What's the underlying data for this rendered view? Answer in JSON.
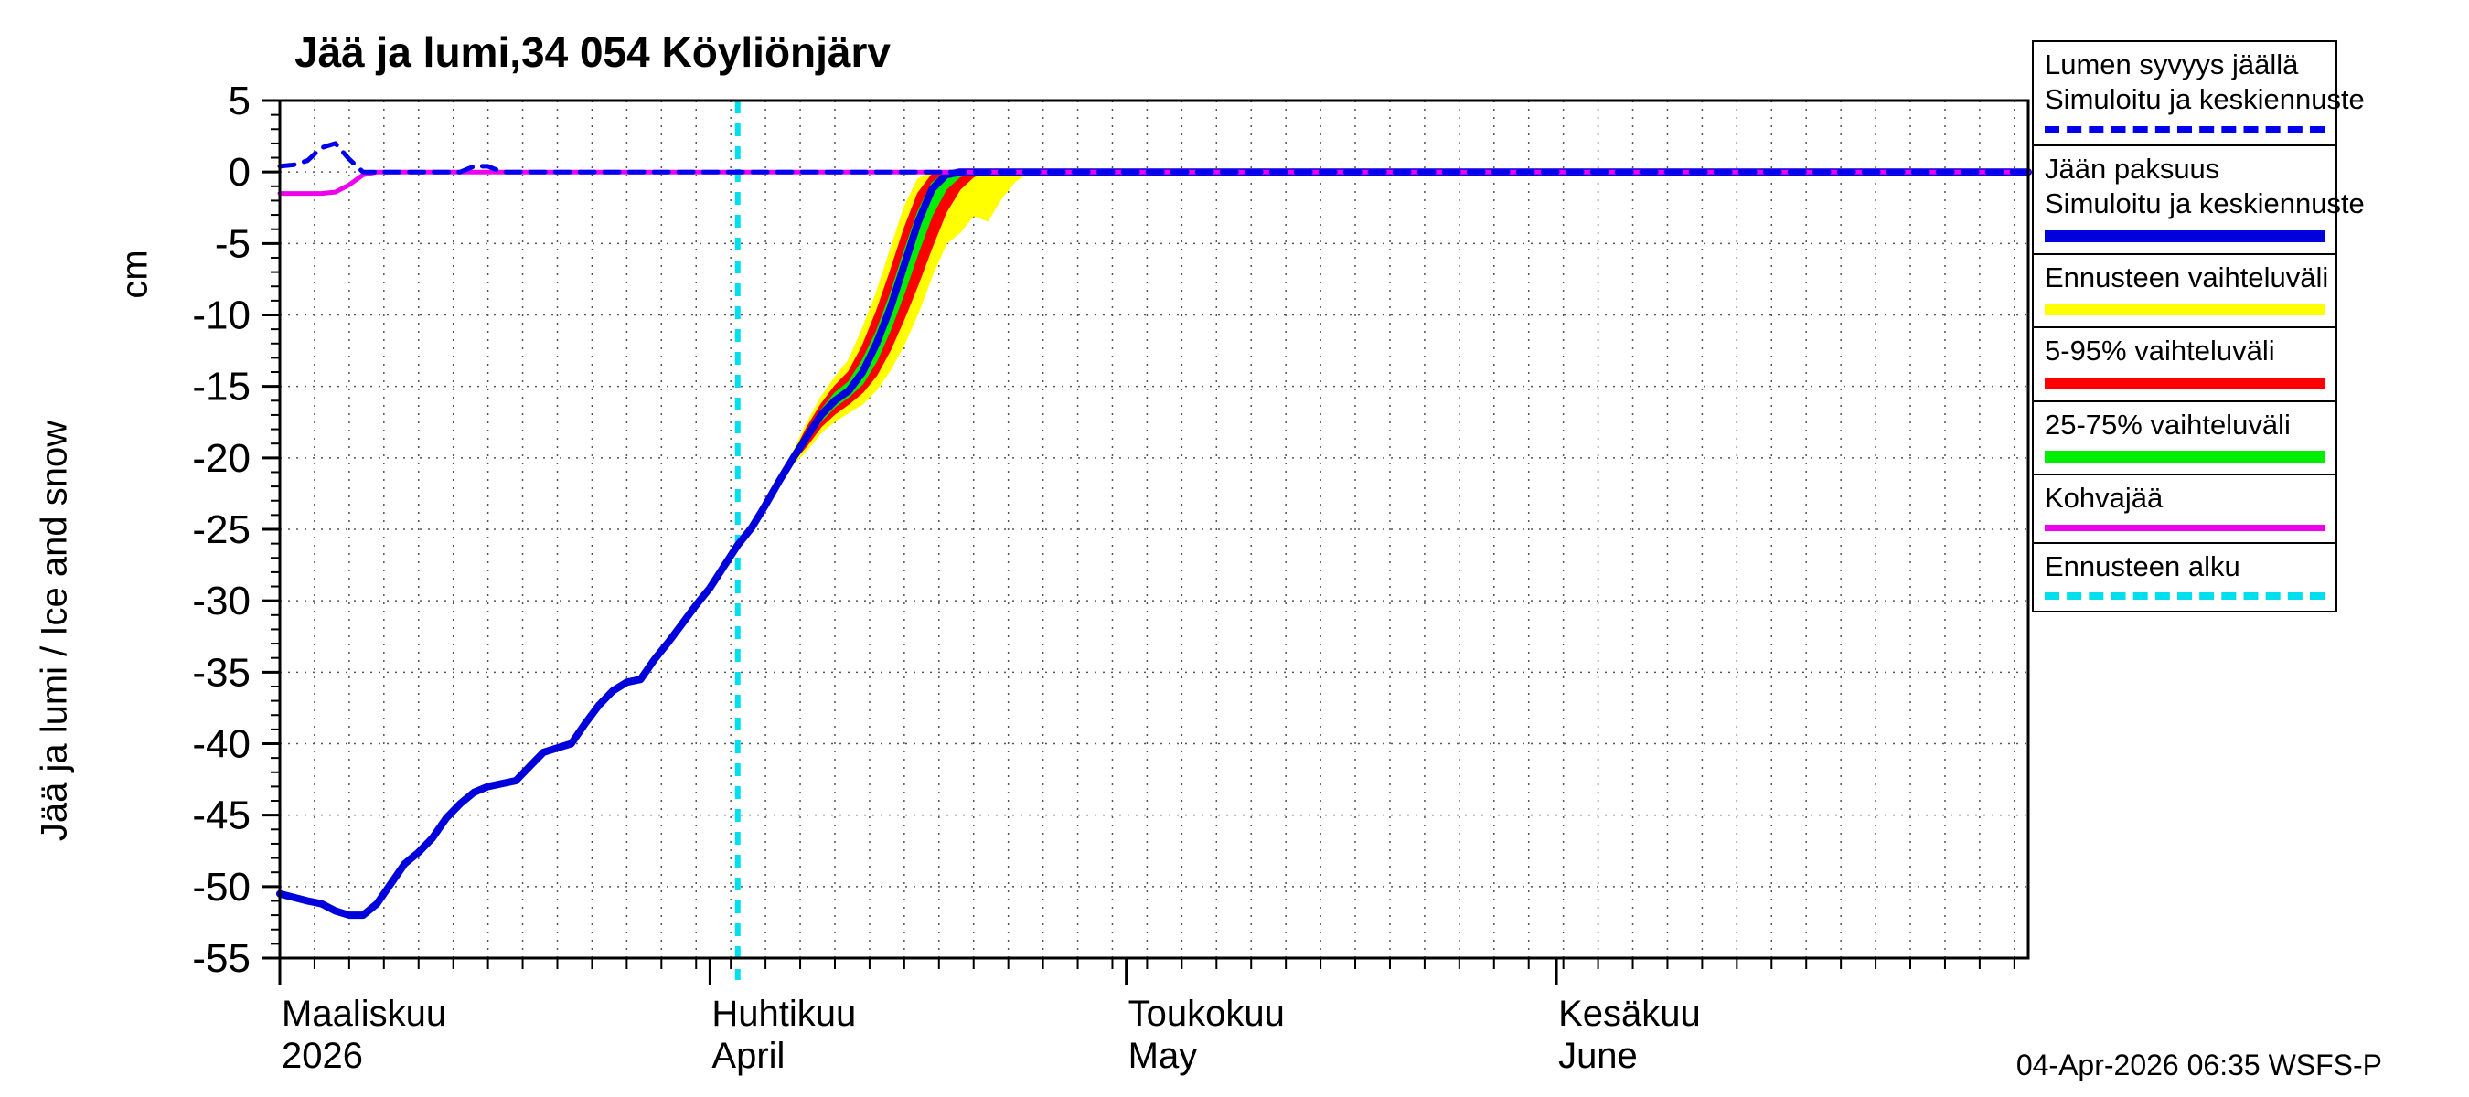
{
  "title": "Jää ja lumi,34 054 Köyliönjärv",
  "ylabel": "Jää ja lumi / Ice and snow",
  "ylabel_unit": "cm",
  "footer": {
    "timestamp": "04-Apr-2026 06:35  WSFS-P"
  },
  "legend": {
    "items": [
      {
        "line1": "Lumen syvyys jäällä",
        "line2": "Simuloitu ja keskiennuste",
        "color": "#0000ee",
        "style": "dashed",
        "thick": false
      },
      {
        "line1": "Jään paksuus",
        "line2": "Simuloitu ja keskiennuste",
        "color": "#0000dd",
        "style": "solid",
        "thick": true
      },
      {
        "line1": "Ennusteen vaihteluväli",
        "color": "#ffff00",
        "style": "solid",
        "thick": true
      },
      {
        "line1": "5-95% vaihteluväli",
        "color": "#ff0000",
        "style": "solid",
        "thick": true
      },
      {
        "line1": "25-75% vaihteluväli",
        "color": "#00ee00",
        "style": "solid",
        "thick": true
      },
      {
        "line1": "Kohvajää",
        "color": "#ee00ee",
        "style": "solid",
        "thick": false
      },
      {
        "line1": "Ennusteen alku",
        "color": "#00dfee",
        "style": "dashed",
        "thick": false
      }
    ]
  },
  "chart_data": {
    "type": "line",
    "title": "Jää ja lumi,34 054 Köyliönjärv",
    "ylabel": "Jää ja lumi / Ice and snow (cm)",
    "ylim": [
      -55,
      5
    ],
    "x_domain_days": [
      0,
      126
    ],
    "grid": true,
    "grid_step_days": 2.5,
    "forecast_start_day": 33,
    "y_ticks": [
      5,
      0,
      -5,
      -10,
      -15,
      -20,
      -25,
      -30,
      -35,
      -40,
      -45,
      -50,
      -55
    ],
    "x_ticks": [
      {
        "day": 0,
        "line1": "Maaliskuu",
        "line2": "2026"
      },
      {
        "day": 31,
        "line1": "Huhtikuu",
        "line2": "April"
      },
      {
        "day": 61,
        "line1": "Toukokuu",
        "line2": "May"
      },
      {
        "day": 92,
        "line1": "Kesäkuu",
        "line2": "June"
      }
    ],
    "bands": [
      {
        "name": "Ennusteen vaihteluväli",
        "color": "#ffff00",
        "upper": [
          [
            37,
            -19.6
          ],
          [
            38,
            -17.6
          ],
          [
            39,
            -15.8
          ],
          [
            40,
            -14.4
          ],
          [
            41,
            -13.2
          ],
          [
            42,
            -11
          ],
          [
            43,
            -8.5
          ],
          [
            44,
            -5.5
          ],
          [
            45,
            -2.5
          ],
          [
            46,
            -0.5
          ],
          [
            47,
            0
          ],
          [
            54,
            0
          ]
        ],
        "lower": [
          [
            37,
            -20.4
          ],
          [
            38,
            -19.4
          ],
          [
            39,
            -18.2
          ],
          [
            40,
            -17.4
          ],
          [
            41,
            -16.8
          ],
          [
            42,
            -16.2
          ],
          [
            43,
            -15.2
          ],
          [
            44,
            -13.8
          ],
          [
            45,
            -12
          ],
          [
            46,
            -9.8
          ],
          [
            47,
            -7.2
          ],
          [
            48,
            -5
          ],
          [
            49,
            -4.2
          ],
          [
            50,
            -3
          ],
          [
            51,
            -3.4
          ],
          [
            52,
            -1.8
          ],
          [
            53,
            -0.6
          ],
          [
            54,
            0
          ]
        ]
      },
      {
        "name": "5-95% vaihteluväli",
        "color": "#ff0000",
        "upper": [
          [
            37,
            -19.8
          ],
          [
            38,
            -17.9
          ],
          [
            39,
            -16.3
          ],
          [
            40,
            -15
          ],
          [
            41,
            -14
          ],
          [
            42,
            -12.2
          ],
          [
            43,
            -9.8
          ],
          [
            44,
            -7
          ],
          [
            45,
            -4
          ],
          [
            46,
            -1.5
          ],
          [
            47,
            -0.2
          ],
          [
            48,
            0
          ],
          [
            52,
            0
          ]
        ],
        "lower": [
          [
            37,
            -20.2
          ],
          [
            38,
            -19.1
          ],
          [
            39,
            -17.8
          ],
          [
            40,
            -16.9
          ],
          [
            41,
            -16.2
          ],
          [
            42,
            -15.4
          ],
          [
            43,
            -14.2
          ],
          [
            44,
            -12.4
          ],
          [
            45,
            -10.2
          ],
          [
            46,
            -7.8
          ],
          [
            47,
            -5.2
          ],
          [
            48,
            -2.8
          ],
          [
            49,
            -1.2
          ],
          [
            50,
            -0.3
          ],
          [
            51,
            0
          ],
          [
            52,
            0
          ]
        ]
      },
      {
        "name": "25-75% vaihteluväli",
        "color": "#00ee00",
        "upper": [
          [
            37,
            -19.9
          ],
          [
            38,
            -18.2
          ],
          [
            39,
            -16.7
          ],
          [
            40,
            -15.5
          ],
          [
            41,
            -14.7
          ],
          [
            42,
            -13.2
          ],
          [
            43,
            -11.2
          ],
          [
            44,
            -8.6
          ],
          [
            45,
            -5.6
          ],
          [
            46,
            -2.8
          ],
          [
            47,
            -0.8
          ],
          [
            48,
            0
          ],
          [
            51,
            0
          ]
        ],
        "lower": [
          [
            37,
            -20.1
          ],
          [
            38,
            -18.8
          ],
          [
            39,
            -17.4
          ],
          [
            40,
            -16.4
          ],
          [
            41,
            -15.7
          ],
          [
            42,
            -14.8
          ],
          [
            43,
            -13.2
          ],
          [
            44,
            -11
          ],
          [
            45,
            -8.4
          ],
          [
            46,
            -5.6
          ],
          [
            47,
            -3
          ],
          [
            48,
            -1.2
          ],
          [
            49,
            -0.3
          ],
          [
            50,
            0
          ],
          [
            51,
            0
          ]
        ]
      }
    ],
    "series": [
      {
        "name": "Jään paksuus (simuloitu ja keskiennuste)",
        "color": "#0000dd",
        "style": "solid",
        "width": 8,
        "points": [
          [
            0,
            -50.5
          ],
          [
            2,
            -51
          ],
          [
            3,
            -51.2
          ],
          [
            4,
            -51.7
          ],
          [
            5,
            -52
          ],
          [
            6,
            -52
          ],
          [
            7,
            -51.2
          ],
          [
            8,
            -49.8
          ],
          [
            9,
            -48.4
          ],
          [
            10,
            -47.6
          ],
          [
            11,
            -46.6
          ],
          [
            12,
            -45.2
          ],
          [
            13,
            -44.2
          ],
          [
            14,
            -43.4
          ],
          [
            15,
            -43
          ],
          [
            17,
            -42.6
          ],
          [
            18,
            -41.6
          ],
          [
            19,
            -40.6
          ],
          [
            20,
            -40.3
          ],
          [
            21,
            -40
          ],
          [
            22,
            -38.6
          ],
          [
            23,
            -37.3
          ],
          [
            24,
            -36.3
          ],
          [
            25,
            -35.7
          ],
          [
            26,
            -35.5
          ],
          [
            27,
            -34.1
          ],
          [
            28,
            -32.9
          ],
          [
            29,
            -31.6
          ],
          [
            30,
            -30.3
          ],
          [
            31,
            -29.1
          ],
          [
            32,
            -27.6
          ],
          [
            33,
            -26.1
          ],
          [
            34,
            -24.9
          ],
          [
            35,
            -23.3
          ],
          [
            36,
            -21.6
          ],
          [
            37,
            -20
          ],
          [
            38,
            -18.5
          ],
          [
            39,
            -17
          ],
          [
            40,
            -16
          ],
          [
            41,
            -15.3
          ],
          [
            42,
            -14
          ],
          [
            43,
            -12
          ],
          [
            44,
            -9.5
          ],
          [
            45,
            -6.5
          ],
          [
            46,
            -3.5
          ],
          [
            47,
            -1.2
          ],
          [
            48,
            -0.2
          ],
          [
            49,
            0
          ],
          [
            126,
            0
          ]
        ]
      },
      {
        "name": "Kohvajää",
        "color": "#ee00ee",
        "style": "solid",
        "width": 5,
        "points": [
          [
            0,
            -1.5
          ],
          [
            3,
            -1.5
          ],
          [
            4,
            -1.4
          ],
          [
            5,
            -0.9
          ],
          [
            6,
            -0.2
          ],
          [
            7,
            0
          ],
          [
            126,
            0
          ]
        ]
      },
      {
        "name": "Lumen syvyys jäällä (simuloitu ja keskiennuste)",
        "color": "#0000ee",
        "style": "dashed",
        "width": 5,
        "points": [
          [
            0,
            0.4
          ],
          [
            1,
            0.5
          ],
          [
            2,
            0.8
          ],
          [
            3,
            1.7
          ],
          [
            4,
            2
          ],
          [
            5,
            0.9
          ],
          [
            6,
            0
          ],
          [
            13,
            0
          ],
          [
            14,
            0.4
          ],
          [
            15,
            0.4
          ],
          [
            16,
            0
          ],
          [
            126,
            0
          ]
        ]
      }
    ]
  }
}
